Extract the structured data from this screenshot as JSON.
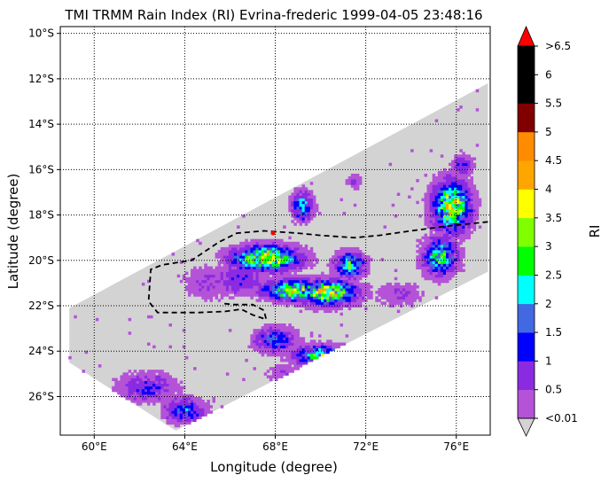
{
  "chart_data": {
    "type": "heatmap",
    "title": "TMI TRMM Rain Index (RI) Evrina-frederic 1999-04-05 23:48:16",
    "xlabel": "Longitude (degree)",
    "ylabel": "Latitude (degree)",
    "xlim": [
      58.5,
      77.5
    ],
    "ylim": [
      -27.7,
      -9.7
    ],
    "x_ticks": [
      60,
      64,
      68,
      72,
      76
    ],
    "x_tick_labels": [
      "60°E",
      "64°E",
      "68°E",
      "72°E",
      "76°E"
    ],
    "y_ticks": [
      -10,
      -12,
      -14,
      -16,
      -18,
      -20,
      -22,
      -24,
      -26
    ],
    "y_tick_labels": [
      "10°S",
      "12°S",
      "14°S",
      "16°S",
      "18°S",
      "20°S",
      "22°S",
      "24°S",
      "26°S"
    ],
    "grid": "dotted",
    "swath": {
      "color": "#d3d3d3",
      "polygon_lonlat": [
        [
          63.6,
          -27.5
        ],
        [
          77.4,
          -20.5
        ],
        [
          77.4,
          -12.2
        ],
        [
          58.9,
          -22.1
        ],
        [
          58.9,
          -24.5
        ]
      ]
    },
    "track": {
      "style": "dashed",
      "color": "#000000",
      "points_lonlat": [
        [
          77.4,
          -18.3
        ],
        [
          75.5,
          -18.5
        ],
        [
          74,
          -18.7
        ],
        [
          72.6,
          -18.9
        ],
        [
          71.5,
          -19.0
        ],
        [
          70,
          -18.9
        ],
        [
          69,
          -18.8
        ],
        [
          67.5,
          -18.7
        ],
        [
          66.3,
          -18.8
        ],
        [
          65.5,
          -19.2
        ],
        [
          64.3,
          -20.0
        ],
        [
          63.0,
          -20.2
        ],
        [
          62.5,
          -20.4
        ],
        [
          62.4,
          -21.8
        ],
        [
          62.8,
          -22.3
        ],
        [
          64.6,
          -22.3
        ],
        [
          65.8,
          -22.25
        ],
        [
          66.5,
          -22.15
        ],
        [
          67.0,
          -22.4
        ],
        [
          67.6,
          -22.6
        ],
        [
          67.5,
          -22.2
        ],
        [
          67.0,
          -21.95
        ],
        [
          66.2,
          -21.95
        ],
        [
          65.7,
          -21.9
        ]
      ]
    },
    "marker": {
      "lon": 67.9,
      "lat": -18.8,
      "color": "#ff0000"
    },
    "rain_cells": [
      {
        "lon": 67.6,
        "lat": -19.9,
        "rlon": 1.6,
        "rlat": 0.6,
        "peak": 3.5
      },
      {
        "lon": 68.8,
        "lat": -21.3,
        "rlon": 1.5,
        "rlat": 0.5,
        "peak": 3.0
      },
      {
        "lon": 70.3,
        "lat": -21.4,
        "rlon": 1.4,
        "rlat": 0.6,
        "peak": 3.5
      },
      {
        "lon": 71.3,
        "lat": -20.2,
        "rlon": 0.7,
        "rlat": 0.6,
        "peak": 2.5
      },
      {
        "lon": 69.2,
        "lat": -17.6,
        "rlon": 0.5,
        "rlat": 0.7,
        "peak": 2.0
      },
      {
        "lon": 75.8,
        "lat": -17.6,
        "rlon": 0.9,
        "rlat": 1.2,
        "peak": 3.5
      },
      {
        "lon": 75.3,
        "lat": -19.8,
        "rlon": 0.8,
        "rlat": 0.9,
        "peak": 2.5
      },
      {
        "lon": 70.0,
        "lat": -24.2,
        "rlon": 1.3,
        "rlat": 0.5,
        "peak": 2.5
      },
      {
        "lon": 68.0,
        "lat": -23.5,
        "rlon": 1.0,
        "rlat": 0.6,
        "peak": 1.5
      },
      {
        "lon": 66.4,
        "lat": -20.8,
        "rlon": 1.2,
        "rlat": 0.8,
        "peak": 1.0
      },
      {
        "lon": 64.0,
        "lat": -26.6,
        "rlon": 1.0,
        "rlat": 0.6,
        "peak": 1.5
      },
      {
        "lon": 62.3,
        "lat": -25.6,
        "rlon": 1.4,
        "rlat": 0.7,
        "peak": 1.0
      },
      {
        "lon": 73.5,
        "lat": -21.5,
        "rlon": 1.2,
        "rlat": 0.6,
        "peak": 0.5
      },
      {
        "lon": 71.5,
        "lat": -16.5,
        "rlon": 0.4,
        "rlat": 0.4,
        "peak": 0.5
      },
      {
        "lon": 76.3,
        "lat": -15.8,
        "rlon": 0.5,
        "rlat": 0.5,
        "peak": 1.0
      },
      {
        "lon": 65.0,
        "lat": -21.0,
        "rlon": 1.2,
        "rlat": 0.9,
        "peak": 0.5
      },
      {
        "lon": 68.5,
        "lat": -25.0,
        "rlon": 1.0,
        "rlat": 0.5,
        "peak": 0.5
      }
    ]
  },
  "colorbar": {
    "label": "RI",
    "levels": [
      0.01,
      0.5,
      1,
      1.5,
      2,
      2.5,
      3,
      3.5,
      4,
      4.5,
      5,
      5.5,
      6,
      6.5
    ],
    "tick_labels": [
      "<0.01",
      "0.5",
      "1",
      "1.5",
      "2",
      "2.5",
      "3",
      "3.5",
      "4",
      "4.5",
      "5",
      "5.5",
      "6",
      ">6.5"
    ],
    "colors": [
      "#b452d8",
      "#8a2be2",
      "#0000ff",
      "#4169e1",
      "#00ffff",
      "#00ff00",
      "#7fff00",
      "#ffff00",
      "#ffa500",
      "#ff8c00",
      "#800000",
      "#000000",
      "#000000"
    ],
    "under_color": "#d3d3d3",
    "over_color": "#ff0000"
  }
}
